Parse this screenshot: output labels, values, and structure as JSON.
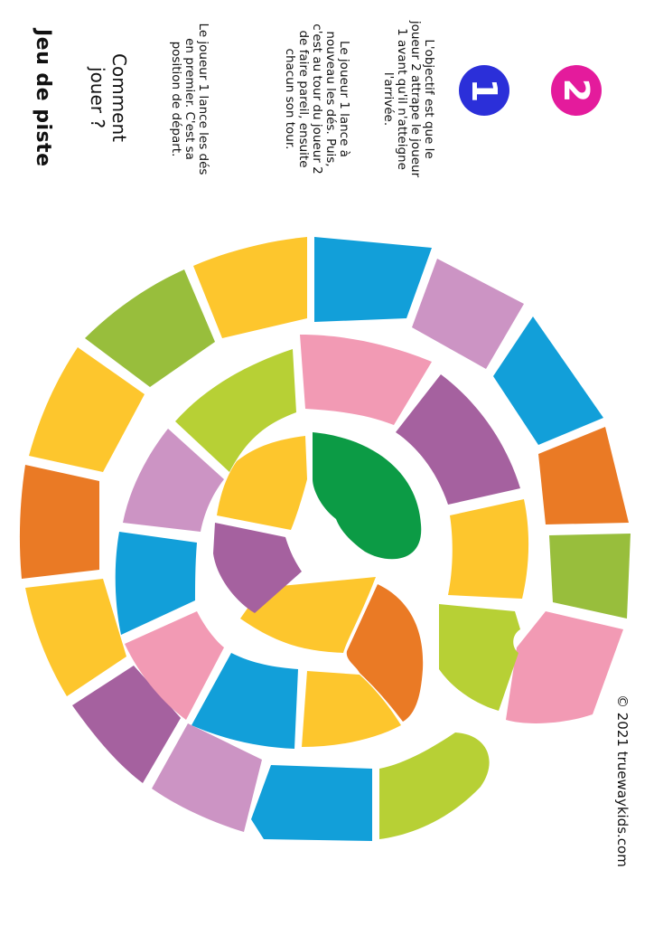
{
  "header": {
    "title": "Jeu de piste",
    "howto_title": "Comment jouer ?"
  },
  "rules": [
    "Le joueur 1 lance les dés en premier. C'est sa position de départ.",
    "Le joueur 1 lance à nouveau les dés. Puis, c'est au tour du joueur 2 de faire pareil, ensuite chacun son tour.",
    "L'objectif est que le joueur 2 attrape le joueur 1 avant qu'il n'atteigne l'arrivée."
  ],
  "players": [
    {
      "label": "1",
      "color": "#2b2fd9"
    },
    {
      "label": "2",
      "color": "#e41b9c"
    }
  ],
  "footer": {
    "copyright": "© 2021 truewaykids.com"
  },
  "colors": {
    "blue": "#129fd9",
    "lilac": "#cc94c4",
    "orange": "#ea7a25",
    "green": "#98be3c",
    "pink": "#f29ab4",
    "lime": "#b7d035",
    "yellow": "#fdc62d",
    "purple": "#a5619f",
    "dark_green": "#0c9b45"
  },
  "board": {
    "outer_ring_colors": [
      "blue",
      "lilac",
      "blue",
      "orange",
      "green",
      "pink",
      "lime",
      "blue",
      "lilac",
      "purple",
      "yellow",
      "orange",
      "yellow",
      "green",
      "yellow"
    ],
    "middle_ring_colors": [
      "pink",
      "purple",
      "yellow",
      "lime",
      "yellow",
      "blue",
      "pink",
      "blue",
      "lilac",
      "lime"
    ],
    "inner_ring_colors": [
      "dark_green",
      "orange",
      "yellow",
      "purple",
      "yellow"
    ]
  }
}
